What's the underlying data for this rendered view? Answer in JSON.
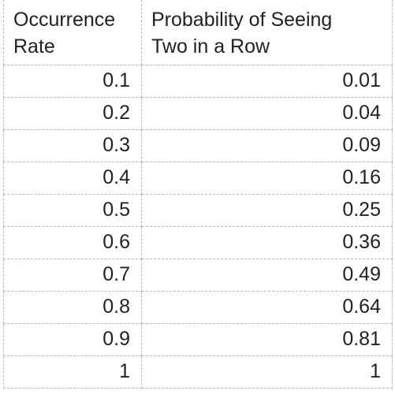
{
  "table": {
    "headers": [
      {
        "line1": "Occurrence",
        "line2": "Rate"
      },
      {
        "line1": "Probability of Seeing",
        "line2": "Two in a Row"
      }
    ],
    "rows": [
      {
        "rate": "0.1",
        "prob": "0.01"
      },
      {
        "rate": "0.2",
        "prob": "0.04"
      },
      {
        "rate": "0.3",
        "prob": "0.09"
      },
      {
        "rate": "0.4",
        "prob": "0.16"
      },
      {
        "rate": "0.5",
        "prob": "0.25"
      },
      {
        "rate": "0.6",
        "prob": "0.36"
      },
      {
        "rate": "0.7",
        "prob": "0.49"
      },
      {
        "rate": "0.8",
        "prob": "0.64"
      },
      {
        "rate": "0.9",
        "prob": "0.81"
      },
      {
        "rate": "1",
        "prob": "1"
      }
    ]
  }
}
